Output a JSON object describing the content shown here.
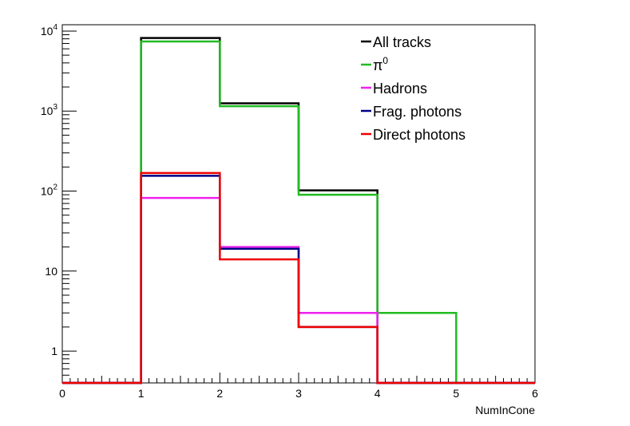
{
  "chart_data": {
    "type": "line",
    "step": true,
    "xlabel": "NumInCone",
    "ylabel": "",
    "title": "",
    "xlim": [
      0,
      6
    ],
    "ylim": [
      0.4,
      12000
    ],
    "yscale": "log",
    "x_ticks": [
      0,
      1,
      2,
      3,
      4,
      5,
      6
    ],
    "x_tick_labels": [
      "0",
      "1",
      "2",
      "3",
      "4",
      "5",
      "6"
    ],
    "y_ticks": [
      {
        "value": 1,
        "base": "1",
        "exp": ""
      },
      {
        "value": 10,
        "base": "10",
        "exp": ""
      },
      {
        "value": 100,
        "base": "10",
        "exp": "2"
      },
      {
        "value": 1000,
        "base": "10",
        "exp": "3"
      },
      {
        "value": 10000,
        "base": "10",
        "exp": "4"
      }
    ],
    "bin_edges": [
      0,
      1,
      2,
      3,
      4,
      5,
      6
    ],
    "legend_position": "top-right",
    "series": [
      {
        "name": "All tracks",
        "color": "#000000",
        "values": [
          0,
          8200,
          1250,
          102,
          0,
          0
        ]
      },
      {
        "name": "π",
        "name_sup": "0",
        "color": "#22bb22",
        "values": [
          0,
          7400,
          1150,
          90,
          3,
          0
        ]
      },
      {
        "name": "Hadrons",
        "color": "#ee22ee",
        "values": [
          0,
          82,
          20,
          3,
          0,
          0
        ]
      },
      {
        "name": "Frag. photons",
        "color": "#000088",
        "values": [
          0,
          155,
          19,
          2,
          0,
          0
        ]
      },
      {
        "name": "Direct photons",
        "color": "#ee0000",
        "values": [
          0,
          168,
          14,
          2,
          0,
          0
        ]
      }
    ]
  }
}
